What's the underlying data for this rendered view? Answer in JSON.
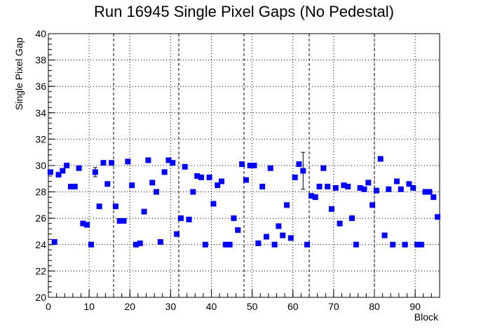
{
  "chart_data": {
    "type": "scatter",
    "title": "Run 16945 Single Pixel Gaps (No Pedestal)",
    "xlabel": "Block",
    "ylabel": "Single Pixel Gap",
    "xlim": [
      0,
      96
    ],
    "ylim": [
      20,
      40
    ],
    "x_ticks": [
      0,
      10,
      20,
      30,
      40,
      50,
      60,
      70,
      80,
      90
    ],
    "y_ticks": [
      20,
      22,
      24,
      26,
      28,
      30,
      32,
      34,
      36,
      38,
      40
    ],
    "grid": "dotted",
    "vertical_dashed_lines": [
      16,
      32,
      48,
      64,
      80
    ],
    "marker_color": "#0000ff",
    "marker": "square",
    "points": [
      {
        "x": 0.5,
        "y": 29.5
      },
      {
        "x": 1.5,
        "y": 24.2
      },
      {
        "x": 2.5,
        "y": 29.3
      },
      {
        "x": 3.5,
        "y": 29.6
      },
      {
        "x": 4.5,
        "y": 30.0
      },
      {
        "x": 5.5,
        "y": 28.4
      },
      {
        "x": 6.5,
        "y": 28.4
      },
      {
        "x": 7.5,
        "y": 29.8
      },
      {
        "x": 8.5,
        "y": 25.6
      },
      {
        "x": 9.5,
        "y": 25.5
      },
      {
        "x": 10.5,
        "y": 24.0
      },
      {
        "x": 11.5,
        "y": 29.5,
        "err": 0.35
      },
      {
        "x": 12.5,
        "y": 26.9
      },
      {
        "x": 13.5,
        "y": 30.2
      },
      {
        "x": 14.5,
        "y": 28.6
      },
      {
        "x": 15.5,
        "y": 30.2
      },
      {
        "x": 16.5,
        "y": 26.9
      },
      {
        "x": 17.5,
        "y": 25.8
      },
      {
        "x": 18.5,
        "y": 25.8
      },
      {
        "x": 19.5,
        "y": 30.3
      },
      {
        "x": 20.5,
        "y": 28.5
      },
      {
        "x": 21.5,
        "y": 24.0
      },
      {
        "x": 22.5,
        "y": 24.1
      },
      {
        "x": 23.5,
        "y": 26.5
      },
      {
        "x": 24.5,
        "y": 30.4
      },
      {
        "x": 25.5,
        "y": 28.7
      },
      {
        "x": 26.5,
        "y": 28.0
      },
      {
        "x": 27.5,
        "y": 24.2
      },
      {
        "x": 28.5,
        "y": 29.5
      },
      {
        "x": 29.5,
        "y": 30.4
      },
      {
        "x": 30.5,
        "y": 30.2
      },
      {
        "x": 31.5,
        "y": 24.8
      },
      {
        "x": 32.5,
        "y": 26.0
      },
      {
        "x": 33.5,
        "y": 29.9
      },
      {
        "x": 34.5,
        "y": 25.9
      },
      {
        "x": 35.5,
        "y": 28.0
      },
      {
        "x": 36.5,
        "y": 29.2
      },
      {
        "x": 37.5,
        "y": 29.1
      },
      {
        "x": 38.5,
        "y": 24.0
      },
      {
        "x": 39.5,
        "y": 29.1
      },
      {
        "x": 40.5,
        "y": 27.1
      },
      {
        "x": 41.5,
        "y": 28.5
      },
      {
        "x": 42.5,
        "y": 28.8
      },
      {
        "x": 43.5,
        "y": 24.0
      },
      {
        "x": 44.5,
        "y": 24.0
      },
      {
        "x": 45.5,
        "y": 26.0
      },
      {
        "x": 46.5,
        "y": 25.1
      },
      {
        "x": 47.5,
        "y": 30.1
      },
      {
        "x": 48.5,
        "y": 28.9
      },
      {
        "x": 49.5,
        "y": 30.0
      },
      {
        "x": 50.5,
        "y": 30.0
      },
      {
        "x": 51.5,
        "y": 24.1
      },
      {
        "x": 52.5,
        "y": 28.4
      },
      {
        "x": 53.5,
        "y": 24.6
      },
      {
        "x": 54.5,
        "y": 29.8
      },
      {
        "x": 55.5,
        "y": 24.0
      },
      {
        "x": 56.5,
        "y": 25.4
      },
      {
        "x": 57.5,
        "y": 24.7
      },
      {
        "x": 58.5,
        "y": 27.0
      },
      {
        "x": 59.5,
        "y": 24.5
      },
      {
        "x": 60.5,
        "y": 29.1
      },
      {
        "x": 61.5,
        "y": 30.1
      },
      {
        "x": 62.5,
        "y": 29.6,
        "err": 1.4
      },
      {
        "x": 63.5,
        "y": 24.0
      },
      {
        "x": 64.5,
        "y": 27.7
      },
      {
        "x": 65.5,
        "y": 27.6
      },
      {
        "x": 66.5,
        "y": 28.4
      },
      {
        "x": 67.5,
        "y": 29.8
      },
      {
        "x": 68.5,
        "y": 28.4
      },
      {
        "x": 69.5,
        "y": 26.7
      },
      {
        "x": 70.5,
        "y": 28.3
      },
      {
        "x": 71.5,
        "y": 25.6
      },
      {
        "x": 72.5,
        "y": 28.5
      },
      {
        "x": 73.5,
        "y": 28.4
      },
      {
        "x": 74.5,
        "y": 26.0
      },
      {
        "x": 75.5,
        "y": 24.0
      },
      {
        "x": 76.5,
        "y": 28.3
      },
      {
        "x": 77.5,
        "y": 28.2
      },
      {
        "x": 78.5,
        "y": 28.7
      },
      {
        "x": 79.5,
        "y": 27.0
      },
      {
        "x": 80.5,
        "y": 28.1
      },
      {
        "x": 81.5,
        "y": 30.5
      },
      {
        "x": 82.5,
        "y": 24.7
      },
      {
        "x": 83.5,
        "y": 28.2
      },
      {
        "x": 84.5,
        "y": 24.0
      },
      {
        "x": 85.5,
        "y": 28.8
      },
      {
        "x": 86.5,
        "y": 28.2
      },
      {
        "x": 87.5,
        "y": 24.0
      },
      {
        "x": 88.5,
        "y": 28.6
      },
      {
        "x": 89.5,
        "y": 28.3
      },
      {
        "x": 90.5,
        "y": 24.0
      },
      {
        "x": 91.5,
        "y": 24.0
      },
      {
        "x": 92.5,
        "y": 28.0
      },
      {
        "x": 93.5,
        "y": 28.0
      },
      {
        "x": 94.5,
        "y": 27.6
      },
      {
        "x": 95.5,
        "y": 26.1
      }
    ]
  }
}
